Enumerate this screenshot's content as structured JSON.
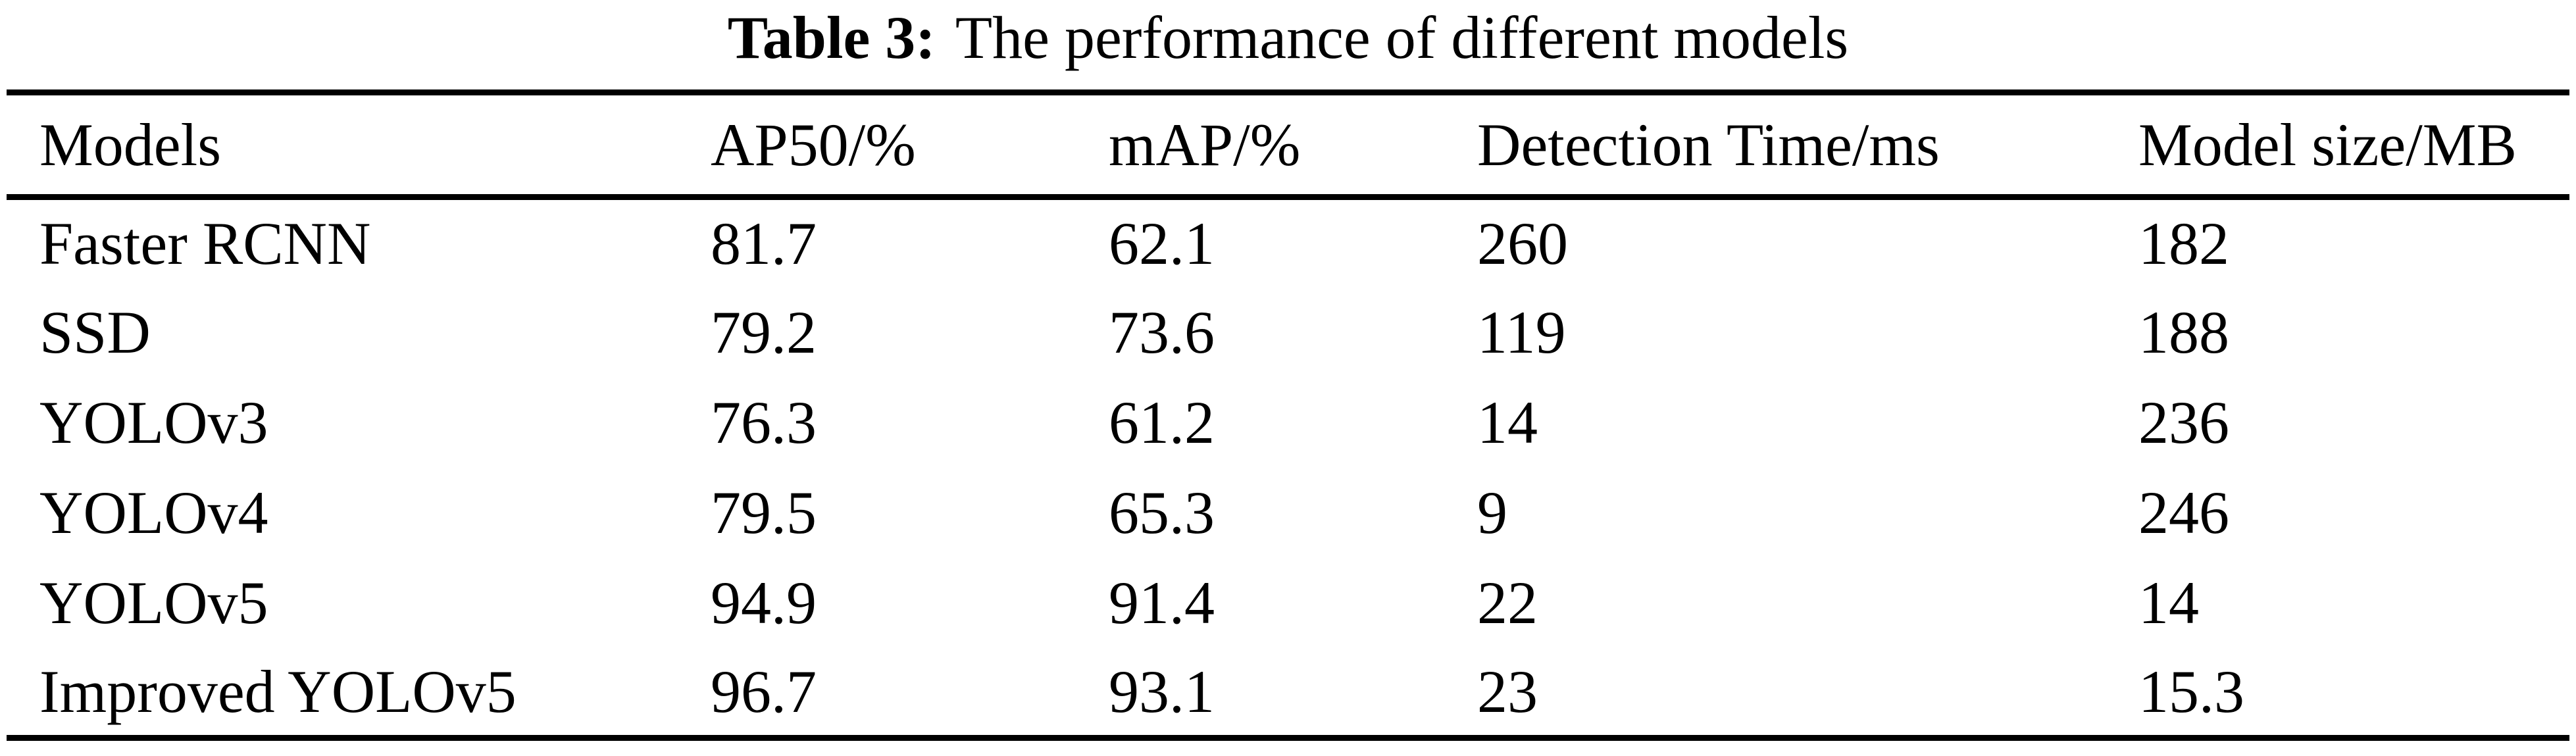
{
  "caption": {
    "label": "Table 3:",
    "text": "The performance of different models"
  },
  "table": {
    "headers": [
      "Models",
      "AP50/%",
      "mAP/%",
      "Detection Time/ms",
      "Model size/MB"
    ],
    "rows": [
      {
        "model": "Faster RCNN",
        "ap50": "81.7",
        "map": "62.1",
        "detection_time": "260",
        "model_size": "182",
        "emphasis": false
      },
      {
        "model": "SSD",
        "ap50": "79.2",
        "map": "73.6",
        "detection_time": "119",
        "model_size": "188",
        "emphasis": false
      },
      {
        "model": "YOLOv3",
        "ap50": "76.3",
        "map": "61.2",
        "detection_time": "14",
        "model_size": "236",
        "emphasis": false
      },
      {
        "model": "YOLOv4",
        "ap50": "79.5",
        "map": "65.3",
        "detection_time": "9",
        "model_size": "246",
        "emphasis": false
      },
      {
        "model": "YOLOv5",
        "ap50": "94.9",
        "map": "91.4",
        "detection_time": "22",
        "model_size": "14",
        "emphasis": false
      },
      {
        "model": "Improved YOLOv5",
        "ap50": "96.7",
        "map": "93.1",
        "detection_time": "23",
        "model_size": "15.3",
        "emphasis": true
      }
    ]
  },
  "colors": {
    "text": "#000000",
    "background": "#ffffff",
    "rule": "#000000"
  }
}
